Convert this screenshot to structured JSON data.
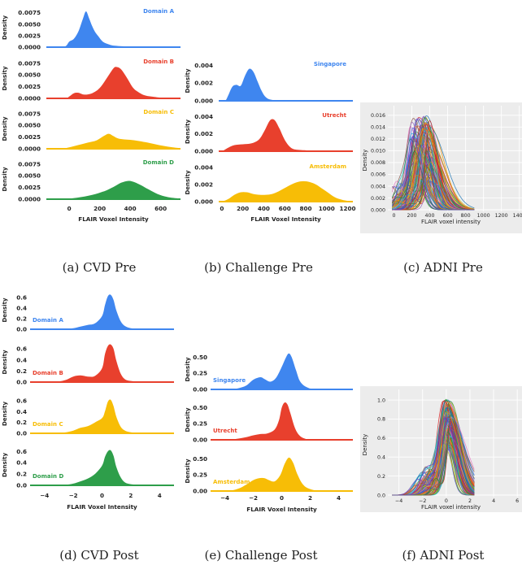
{
  "captions": {
    "a": "(a) CVD Pre",
    "b": "(b) Challenge Pre",
    "c": "(c) ADNI Pre",
    "d": "(d) CVD Post",
    "e": "(e) Challenge Post",
    "f": "(f) ADNI Post"
  },
  "colors": {
    "blue": "#3f86ef",
    "red": "#e8402d",
    "yellow": "#f7bd06",
    "green": "#2e9e4a"
  },
  "chart_data": [
    {
      "id": "a",
      "type": "area",
      "xlabel": "FLAIR Voxel Intensity",
      "ylabel": "Density",
      "xlim": [
        -150,
        730
      ],
      "xticks": [
        0,
        200,
        400,
        600
      ],
      "ylim": [
        0,
        0.0085
      ],
      "yticks": [
        0.0,
        0.0025,
        0.005,
        0.0075
      ],
      "ytick_labels": [
        "0.0000",
        "0.0025",
        "0.0050",
        "0.0075"
      ],
      "series": [
        {
          "name": "Domain A",
          "color": "blue",
          "label_pos": "top-right",
          "x": [
            -150,
            -50,
            -20,
            0,
            30,
            60,
            90,
            110,
            130,
            150,
            170,
            190,
            220,
            260,
            300,
            400,
            500,
            600,
            730
          ],
          "y": [
            0,
            0,
            0.0003,
            0.0012,
            0.0018,
            0.0034,
            0.0062,
            0.0078,
            0.0063,
            0.0046,
            0.0033,
            0.0024,
            0.0012,
            0.0006,
            0.0003,
            0.0001,
            0.0001,
            5e-05,
            0
          ]
        },
        {
          "name": "Domain B",
          "color": "red",
          "label_pos": "top-right",
          "x": [
            -150,
            -30,
            0,
            30,
            60,
            100,
            150,
            200,
            250,
            290,
            310,
            340,
            380,
            420,
            460,
            500,
            560,
            620,
            730
          ],
          "y": [
            0,
            0,
            0.0004,
            0.0011,
            0.0012,
            0.0008,
            0.0011,
            0.0022,
            0.0045,
            0.0064,
            0.0067,
            0.0062,
            0.0043,
            0.0022,
            0.0012,
            0.0006,
            0.0003,
            0.0001,
            0
          ]
        },
        {
          "name": "Domain C",
          "color": "yellow",
          "label_pos": "top-right",
          "x": [
            -150,
            -50,
            0,
            60,
            120,
            180,
            230,
            260,
            290,
            320,
            360,
            400,
            450,
            500,
            560,
            620,
            680,
            730
          ],
          "y": [
            0,
            0,
            0.0003,
            0.0008,
            0.0013,
            0.0018,
            0.0028,
            0.0032,
            0.0027,
            0.0022,
            0.002,
            0.0019,
            0.0017,
            0.0014,
            0.001,
            0.0006,
            0.0003,
            0.0001
          ]
        },
        {
          "name": "Domain D",
          "color": "green",
          "label_pos": "top-right",
          "x": [
            -150,
            -40,
            50,
            150,
            230,
            290,
            340,
            390,
            430,
            470,
            520,
            580,
            640,
            700,
            730
          ],
          "y": [
            0,
            0,
            0.0003,
            0.0009,
            0.0017,
            0.0026,
            0.0035,
            0.0039,
            0.0036,
            0.003,
            0.0021,
            0.0011,
            0.0005,
            0.0002,
            0.0001
          ]
        }
      ]
    },
    {
      "id": "b",
      "type": "area",
      "xlabel": "FLAIR Voxel Intensity",
      "ylabel": "Density",
      "xlim": [
        -30,
        1250
      ],
      "xticks": [
        0,
        200,
        400,
        600,
        800,
        1000,
        1200
      ],
      "ylim": [
        0,
        0.0045
      ],
      "yticks": [
        0.0,
        0.002,
        0.004
      ],
      "ytick_labels": [
        "0.000",
        "0.002",
        "0.004"
      ],
      "series": [
        {
          "name": "Singapore",
          "color": "blue",
          "label_pos": "top-right",
          "x": [
            -30,
            30,
            60,
            100,
            140,
            180,
            220,
            260,
            300,
            340,
            380,
            420,
            480,
            600,
            800,
            1250
          ],
          "y": [
            0,
            0,
            0.0006,
            0.0016,
            0.0018,
            0.0017,
            0.0028,
            0.0036,
            0.0033,
            0.0022,
            0.0011,
            0.0004,
            0.0001,
            0,
            0,
            0
          ]
        },
        {
          "name": "Utrecht",
          "color": "red",
          "label_pos": "top-right",
          "x": [
            -30,
            0,
            60,
            120,
            200,
            280,
            350,
            400,
            450,
            480,
            510,
            550,
            600,
            650,
            700,
            800,
            900,
            1250
          ],
          "y": [
            0,
            0,
            0.0004,
            0.0007,
            0.0008,
            0.0009,
            0.0013,
            0.0022,
            0.0034,
            0.0037,
            0.0035,
            0.0026,
            0.0013,
            0.0005,
            0.0002,
            0.0001,
            0,
            0
          ]
        },
        {
          "name": "Amsterdam",
          "color": "yellow",
          "label_pos": "top-right",
          "x": [
            -30,
            0,
            60,
            120,
            180,
            240,
            300,
            360,
            420,
            480,
            540,
            600,
            660,
            720,
            780,
            840,
            900,
            960,
            1020,
            1080,
            1150,
            1250
          ],
          "y": [
            0,
            0,
            0.0003,
            0.0008,
            0.0011,
            0.0011,
            0.0009,
            0.0008,
            0.0008,
            0.0009,
            0.0012,
            0.0016,
            0.002,
            0.0023,
            0.0024,
            0.0023,
            0.002,
            0.0015,
            0.001,
            0.0005,
            0.0002,
            0
          ]
        }
      ]
    },
    {
      "id": "c",
      "type": "line",
      "xlabel": "FLAIR voxel intensity",
      "ylabel": "Density",
      "xlim": [
        -50,
        1430
      ],
      "xticks": [
        0,
        200,
        400,
        600,
        800,
        1000,
        1200,
        1400
      ],
      "ylim": [
        0,
        0.0168
      ],
      "yticks": [
        0,
        0.002,
        0.004,
        0.006,
        0.008,
        0.01,
        0.012,
        0.014,
        0.016
      ],
      "ytick_labels": [
        "0.000",
        "0.002",
        "0.004",
        "0.006",
        "0.008",
        "0.010",
        "0.012",
        "0.014",
        "0.016"
      ],
      "grid": true,
      "n_curves": 120,
      "peak_x_range": [
        180,
        420
      ],
      "peak_y_range": [
        0.004,
        0.016
      ]
    },
    {
      "id": "d",
      "type": "area",
      "xlabel": "FLAIR Voxel Intensity",
      "ylabel": "Density",
      "xlim": [
        -5,
        5
      ],
      "xticks": [
        -4,
        -2,
        0,
        2,
        4
      ],
      "ylim": [
        0,
        0.72
      ],
      "yticks": [
        0.0,
        0.2,
        0.4,
        0.6
      ],
      "ytick_labels": [
        "0.0",
        "0.2",
        "0.4",
        "0.6"
      ],
      "series": [
        {
          "name": "Domain A",
          "color": "blue",
          "label_pos": "left",
          "x": [
            -5,
            -3.5,
            -3,
            -2.5,
            -2,
            -1.5,
            -1,
            -0.5,
            0,
            0.2,
            0.4,
            0.6,
            0.8,
            1,
            1.3,
            1.6,
            2,
            2.5,
            3,
            5
          ],
          "y": [
            0,
            0,
            0.005,
            0.01,
            0.02,
            0.05,
            0.08,
            0.11,
            0.25,
            0.45,
            0.62,
            0.65,
            0.55,
            0.35,
            0.15,
            0.06,
            0.02,
            0.01,
            0,
            0
          ]
        },
        {
          "name": "Domain B",
          "color": "red",
          "label_pos": "left",
          "x": [
            -5,
            -3.5,
            -3,
            -2.5,
            -2,
            -1.5,
            -1,
            -0.5,
            0,
            0.2,
            0.4,
            0.6,
            0.8,
            1,
            1.3,
            1.6,
            2,
            2.5,
            3,
            5
          ],
          "y": [
            0,
            0,
            0.01,
            0.04,
            0.1,
            0.12,
            0.1,
            0.11,
            0.25,
            0.5,
            0.65,
            0.68,
            0.6,
            0.38,
            0.15,
            0.05,
            0.02,
            0.01,
            0,
            0
          ]
        },
        {
          "name": "Domain C",
          "color": "yellow",
          "label_pos": "left",
          "x": [
            -5,
            -3.5,
            -3,
            -2.5,
            -2,
            -1.5,
            -1,
            -0.5,
            0,
            0.2,
            0.4,
            0.6,
            0.8,
            1,
            1.3,
            1.6,
            2,
            2.5,
            3,
            5
          ],
          "y": [
            0,
            0,
            0.01,
            0.02,
            0.05,
            0.1,
            0.13,
            0.2,
            0.28,
            0.4,
            0.58,
            0.62,
            0.5,
            0.3,
            0.12,
            0.05,
            0.02,
            0.01,
            0,
            0
          ]
        },
        {
          "name": "Domain D",
          "color": "green",
          "label_pos": "left",
          "x": [
            -5,
            -3.5,
            -3,
            -2.5,
            -2,
            -1.5,
            -1,
            -0.5,
            0,
            0.2,
            0.4,
            0.6,
            0.8,
            1,
            1.3,
            1.6,
            2,
            2.5,
            3,
            5
          ],
          "y": [
            0,
            0,
            0.005,
            0.01,
            0.03,
            0.07,
            0.12,
            0.2,
            0.35,
            0.5,
            0.6,
            0.62,
            0.52,
            0.32,
            0.14,
            0.05,
            0.02,
            0.01,
            0,
            0
          ]
        }
      ]
    },
    {
      "id": "e",
      "type": "area",
      "xlabel": "FLAIR Voxel Intensity",
      "ylabel": "Density",
      "xlim": [
        -5,
        5
      ],
      "xticks": [
        -4,
        -2,
        0,
        2,
        4
      ],
      "ylim": [
        0,
        0.62
      ],
      "yticks": [
        0.0,
        0.25,
        0.5
      ],
      "ytick_labels": [
        "0.00",
        "0.25",
        "0.50"
      ],
      "series": [
        {
          "name": "Singapore",
          "color": "blue",
          "label_pos": "left",
          "x": [
            -5,
            -4,
            -3.5,
            -3,
            -2.5,
            -2,
            -1.5,
            -1.2,
            -0.8,
            -0.4,
            0,
            0.3,
            0.5,
            0.7,
            1,
            1.3,
            1.8,
            2.5,
            5
          ],
          "y": [
            0,
            0,
            0.005,
            0.02,
            0.06,
            0.15,
            0.19,
            0.16,
            0.12,
            0.18,
            0.35,
            0.5,
            0.56,
            0.5,
            0.3,
            0.12,
            0.03,
            0.005,
            0
          ]
        },
        {
          "name": "Utrecht",
          "color": "red",
          "label_pos": "left",
          "x": [
            -5,
            -4,
            -3.5,
            -3,
            -2.5,
            -2,
            -1.5,
            -1,
            -0.5,
            -0.2,
            0,
            0.2,
            0.4,
            0.6,
            0.9,
            1.2,
            1.6,
            2.2,
            5
          ],
          "y": [
            0,
            0,
            0.005,
            0.02,
            0.04,
            0.07,
            0.09,
            0.1,
            0.16,
            0.3,
            0.5,
            0.58,
            0.55,
            0.42,
            0.2,
            0.08,
            0.02,
            0.005,
            0
          ]
        },
        {
          "name": "Amsterdam",
          "color": "yellow",
          "label_pos": "left",
          "x": [
            -5,
            -4,
            -3.5,
            -3,
            -2.5,
            -2,
            -1.6,
            -1.2,
            -0.9,
            -0.5,
            -0.1,
            0.2,
            0.5,
            0.8,
            1.1,
            1.5,
            2,
            2.8,
            5
          ],
          "y": [
            0,
            0,
            0.01,
            0.04,
            0.1,
            0.17,
            0.2,
            0.2,
            0.17,
            0.15,
            0.25,
            0.42,
            0.52,
            0.44,
            0.26,
            0.1,
            0.03,
            0.005,
            0
          ]
        }
      ]
    },
    {
      "id": "f",
      "type": "line",
      "xlabel": "FLAIR voxel intensity",
      "ylabel": "Density",
      "xlim": [
        -4.8,
        6.4
      ],
      "xticks": [
        -4,
        -2,
        0,
        2,
        4,
        6
      ],
      "ylim": [
        0,
        1.06
      ],
      "yticks": [
        0,
        0.2,
        0.4,
        0.6,
        0.8,
        1.0
      ],
      "ytick_labels": [
        "0.0",
        "0.2",
        "0.4",
        "0.6",
        "0.8",
        "1.0"
      ],
      "grid": true,
      "n_curves": 120,
      "peak_x_range": [
        -0.3,
        0.4
      ],
      "peak_y_range": [
        0.45,
        1.0
      ]
    }
  ]
}
